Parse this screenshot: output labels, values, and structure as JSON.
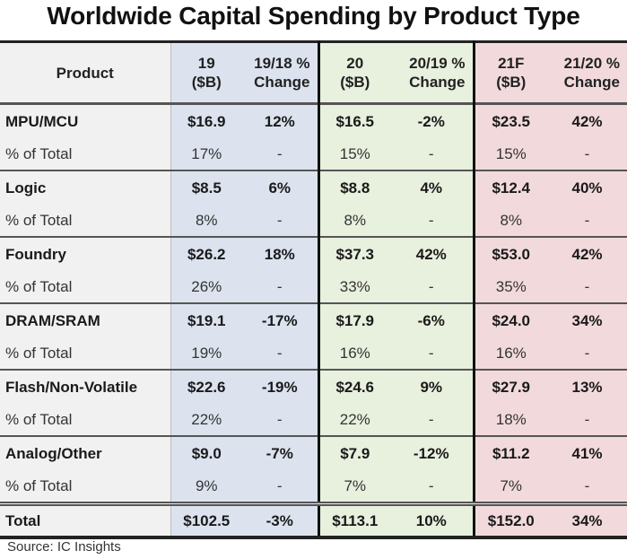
{
  "title": "Worldwide Capital Spending by Product Type",
  "source": "Source: IC Insights",
  "colors": {
    "header_gray": "#f1f1f1",
    "band_2019": "#dce3ef",
    "band_2020": "#e8f0de",
    "band_2021": "#f2dadc"
  },
  "header": {
    "product": "Product",
    "c19_line1": "19",
    "c19_line2": "($B)",
    "c1918_line1": "19/18 %",
    "c1918_line2": "Change",
    "c20_line1": "20",
    "c20_line2": "($B)",
    "c2019_line1": "20/19 %",
    "c2019_line2": "Change",
    "c21_line1": "21F",
    "c21_line2": "($B)",
    "c2120_line1": "21/20 %",
    "c2120_line2": "Change"
  },
  "rows": [
    {
      "name": "MPU/MCU",
      "v19": "$16.9",
      "ch19": "12%",
      "v20": "$16.5",
      "ch20": "-2%",
      "v21": "$23.5",
      "ch21": "42%",
      "sub_label": "% of Total",
      "p19": "17%",
      "d19": "-",
      "p20": "15%",
      "d20": "-",
      "p21": "15%",
      "d21": "-"
    },
    {
      "name": "Logic",
      "v19": "$8.5",
      "ch19": "6%",
      "v20": "$8.8",
      "ch20": "4%",
      "v21": "$12.4",
      "ch21": "40%",
      "sub_label": "% of Total",
      "p19": "8%",
      "d19": "-",
      "p20": "8%",
      "d20": "-",
      "p21": "8%",
      "d21": "-"
    },
    {
      "name": "Foundry",
      "v19": "$26.2",
      "ch19": "18%",
      "v20": "$37.3",
      "ch20": "42%",
      "v21": "$53.0",
      "ch21": "42%",
      "sub_label": "% of Total",
      "p19": "26%",
      "d19": "-",
      "p20": "33%",
      "d20": "-",
      "p21": "35%",
      "d21": "-"
    },
    {
      "name": "DRAM/SRAM",
      "v19": "$19.1",
      "ch19": "-17%",
      "v20": "$17.9",
      "ch20": "-6%",
      "v21": "$24.0",
      "ch21": "34%",
      "sub_label": "% of Total",
      "p19": "19%",
      "d19": "-",
      "p20": "16%",
      "d20": "-",
      "p21": "16%",
      "d21": "-"
    },
    {
      "name": "Flash/Non-Volatile",
      "v19": "$22.6",
      "ch19": "-19%",
      "v20": "$24.6",
      "ch20": "9%",
      "v21": "$27.9",
      "ch21": "13%",
      "sub_label": "% of Total",
      "p19": "22%",
      "d19": "-",
      "p20": "22%",
      "d20": "-",
      "p21": "18%",
      "d21": "-"
    },
    {
      "name": "Analog/Other",
      "v19": "$9.0",
      "ch19": "-7%",
      "v20": "$7.9",
      "ch20": "-12%",
      "v21": "$11.2",
      "ch21": "41%",
      "sub_label": "% of Total",
      "p19": "9%",
      "d19": "-",
      "p20": "7%",
      "d20": "-",
      "p21": "7%",
      "d21": "-"
    }
  ],
  "total": {
    "name": "Total",
    "v19": "$102.5",
    "ch19": "-3%",
    "v20": "$113.1",
    "ch20": "10%",
    "v21": "$152.0",
    "ch21": "34%"
  },
  "chart_data": {
    "type": "table",
    "title": "Worldwide Capital Spending by Product Type",
    "columns": [
      "Product",
      "19 ($B)",
      "19/18 % Change",
      "20 ($B)",
      "20/19 % Change",
      "21F ($B)",
      "21/20 % Change"
    ],
    "series": [
      {
        "name": "MPU/MCU",
        "values": [
          16.9,
          12,
          16.5,
          -2,
          23.5,
          42
        ],
        "share_of_total": [
          17,
          15,
          15
        ]
      },
      {
        "name": "Logic",
        "values": [
          8.5,
          6,
          8.8,
          4,
          12.4,
          40
        ],
        "share_of_total": [
          8,
          8,
          8
        ]
      },
      {
        "name": "Foundry",
        "values": [
          26.2,
          18,
          37.3,
          42,
          53.0,
          42
        ],
        "share_of_total": [
          26,
          33,
          35
        ]
      },
      {
        "name": "DRAM/SRAM",
        "values": [
          19.1,
          -17,
          17.9,
          -6,
          24.0,
          34
        ],
        "share_of_total": [
          19,
          16,
          16
        ]
      },
      {
        "name": "Flash/Non-Volatile",
        "values": [
          22.6,
          -19,
          24.6,
          9,
          27.9,
          13
        ],
        "share_of_total": [
          22,
          22,
          18
        ]
      },
      {
        "name": "Analog/Other",
        "values": [
          9.0,
          -7,
          7.9,
          -12,
          11.2,
          41
        ],
        "share_of_total": [
          9,
          7,
          7
        ]
      },
      {
        "name": "Total",
        "values": [
          102.5,
          -3,
          113.1,
          10,
          152.0,
          34
        ]
      }
    ]
  }
}
